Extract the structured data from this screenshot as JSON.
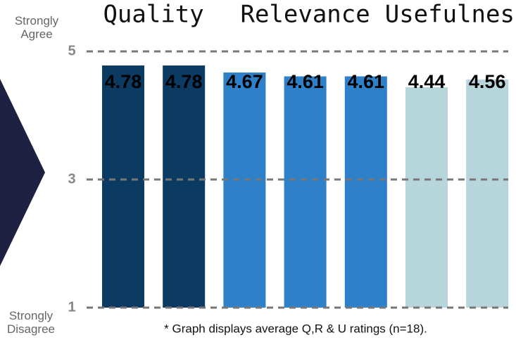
{
  "chart_data": {
    "type": "bar",
    "categories": [
      null,
      null,
      null,
      null,
      null,
      null,
      null
    ],
    "series": [
      {
        "name": "Quality",
        "color": "#0b3a63",
        "values": [
          4.78,
          4.78,
          null,
          null,
          null,
          null,
          null
        ]
      },
      {
        "name": "Relevance",
        "color": "#2e80c8",
        "values": [
          null,
          null,
          4.67,
          4.61,
          4.61,
          null,
          null
        ]
      },
      {
        "name": "Usefulness",
        "color": "#b6d6dc",
        "values": [
          null,
          null,
          null,
          null,
          null,
          4.44,
          4.56
        ]
      }
    ],
    "ylim": [
      1,
      5
    ],
    "yticks": [
      1,
      3,
      5
    ],
    "grid": true,
    "top_label": "Strongly Agree",
    "bottom_label": "Strongly Disagree",
    "footnote": "* Graph displays average Q,R & U ratings  (n=18)."
  }
}
